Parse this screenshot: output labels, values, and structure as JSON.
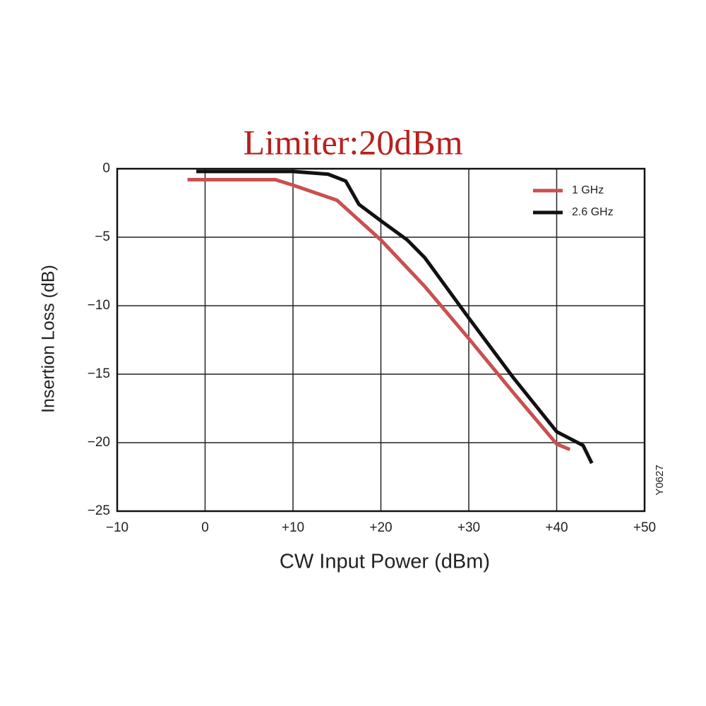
{
  "chart_data": {
    "type": "line",
    "title": "Limiter:20dBm",
    "x_label": "CW Input Power (dBm)",
    "y_label": "Insertion Loss (dB)",
    "annotation": "Y0627",
    "xlim": [
      -10,
      50
    ],
    "ylim": [
      -25,
      0
    ],
    "xticks": [
      {
        "value": -10,
        "label": "−10"
      },
      0,
      {
        "value": 10,
        "label": "+10"
      },
      {
        "value": 20,
        "label": "+20"
      },
      {
        "value": 30,
        "label": "+30"
      },
      {
        "value": 40,
        "label": "+40"
      },
      {
        "value": 50,
        "label": "+50"
      }
    ],
    "yticks": [
      0,
      {
        "value": -5,
        "label": "−5"
      },
      {
        "value": -10,
        "label": "−10"
      },
      {
        "value": -15,
        "label": "−15"
      },
      {
        "value": -20,
        "label": "−20"
      },
      {
        "value": -25,
        "label": "−25"
      }
    ],
    "grid": true,
    "legend": "top-right",
    "series": [
      {
        "name": "1 GHz",
        "color": "#c9504f",
        "x": [
          -2,
          8,
          10,
          15,
          20,
          25,
          30,
          35,
          40,
          41.5
        ],
        "values": [
          -0.8,
          -0.8,
          -1.2,
          -2.3,
          -5.2,
          -8.6,
          -12.4,
          -16.3,
          -20.1,
          -20.5
        ]
      },
      {
        "name": "2.6 GHz",
        "color": "#111111",
        "x": [
          -1,
          10,
          14,
          16,
          17.5,
          20,
          23,
          25,
          30,
          35,
          40,
          41.5,
          43,
          44
        ],
        "values": [
          -0.2,
          -0.2,
          -0.4,
          -0.9,
          -2.6,
          -3.8,
          -5.2,
          -6.5,
          -10.9,
          -15.2,
          -19.2,
          -19.7,
          -20.2,
          -21.5
        ]
      }
    ]
  }
}
